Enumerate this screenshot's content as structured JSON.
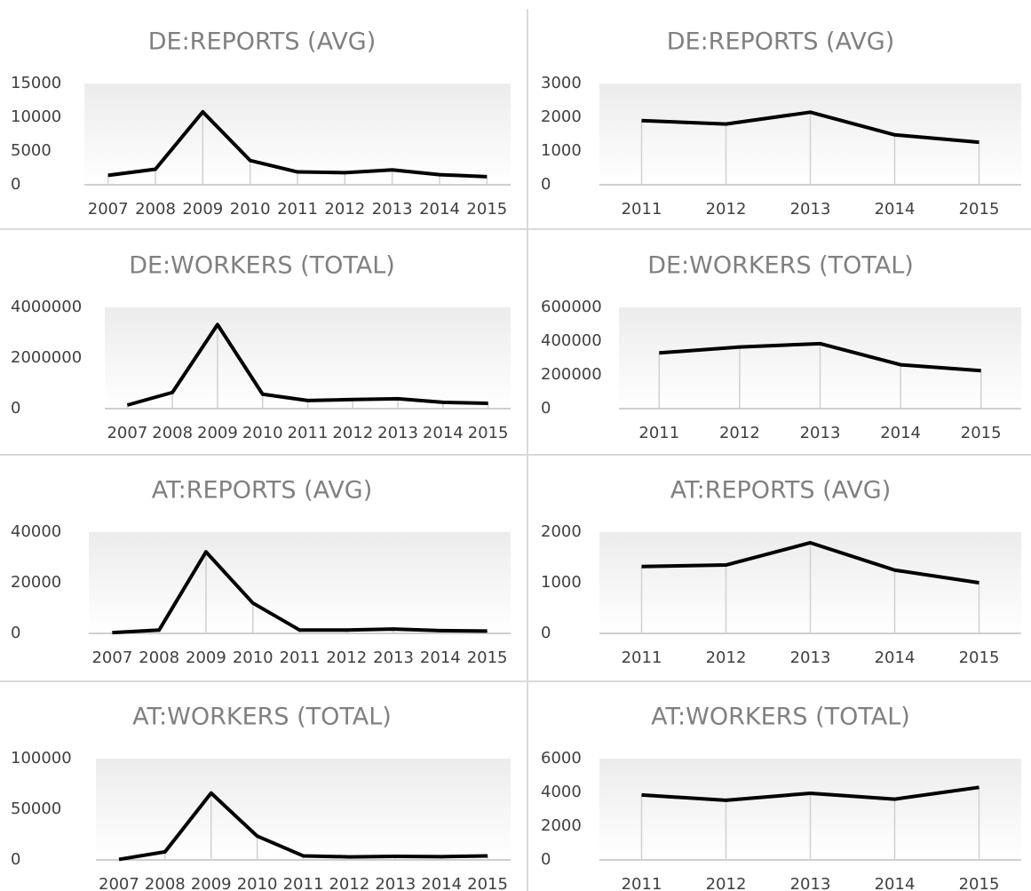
{
  "chart_data": [
    {
      "type": "line",
      "title": "DE:REPORTS (AVG)",
      "categories": [
        "2007",
        "2008",
        "2009",
        "2010",
        "2011",
        "2012",
        "2013",
        "2014",
        "2015"
      ],
      "values": [
        1400,
        2300,
        10800,
        3600,
        1900,
        1800,
        2200,
        1500,
        1200
      ],
      "color": "#000000",
      "ylim": [
        0,
        15000
      ],
      "yticks": [
        0,
        5000,
        10000,
        15000
      ],
      "grid": false
    },
    {
      "type": "line",
      "title": "DE:REPORTS (AVG)",
      "categories": [
        "2011",
        "2012",
        "2013",
        "2014",
        "2015"
      ],
      "values": [
        1900,
        1800,
        2150,
        1480,
        1260
      ],
      "color": "#000000",
      "ylim": [
        0,
        3000
      ],
      "yticks": [
        0,
        1000,
        2000,
        3000
      ],
      "grid": false
    },
    {
      "type": "line",
      "title": "DE:WORKERS (TOTAL)",
      "categories": [
        "2007",
        "2008",
        "2009",
        "2010",
        "2011",
        "2012",
        "2013",
        "2014",
        "2015"
      ],
      "values": [
        140000,
        640000,
        3320000,
        570000,
        320000,
        360000,
        390000,
        250000,
        210000
      ],
      "color": "#000000",
      "ylim": [
        0,
        4000000
      ],
      "yticks": [
        0,
        2000000,
        4000000
      ],
      "grid": false
    },
    {
      "type": "line",
      "title": "DE:WORKERS (TOTAL)",
      "categories": [
        "2011",
        "2012",
        "2013",
        "2014",
        "2015"
      ],
      "values": [
        330000,
        365000,
        385000,
        260000,
        225000
      ],
      "color": "#000000",
      "ylim": [
        0,
        600000
      ],
      "yticks": [
        0,
        200000,
        400000,
        600000
      ],
      "grid": false
    },
    {
      "type": "line",
      "title": "AT:REPORTS (AVG)",
      "categories": [
        "2007",
        "2008",
        "2009",
        "2010",
        "2011",
        "2012",
        "2013",
        "2014",
        "2015"
      ],
      "values": [
        300,
        1300,
        32200,
        12000,
        1300,
        1300,
        1700,
        1100,
        900
      ],
      "color": "#000000",
      "ylim": [
        0,
        40000
      ],
      "yticks": [
        0,
        20000,
        40000
      ],
      "grid": false
    },
    {
      "type": "line",
      "title": "AT:REPORTS (AVG)",
      "categories": [
        "2011",
        "2012",
        "2013",
        "2014",
        "2015"
      ],
      "values": [
        1320,
        1350,
        1790,
        1250,
        1000
      ],
      "color": "#000000",
      "ylim": [
        0,
        2000
      ],
      "yticks": [
        0,
        1000,
        2000
      ],
      "grid": false
    },
    {
      "type": "line",
      "title": "AT:WORKERS (TOTAL)",
      "categories": [
        "2007",
        "2008",
        "2009",
        "2010",
        "2011",
        "2012",
        "2013",
        "2014",
        "2015"
      ],
      "values": [
        500,
        8000,
        66000,
        23500,
        4000,
        3000,
        3500,
        3200,
        4000
      ],
      "color": "#000000",
      "ylim": [
        0,
        100000
      ],
      "yticks": [
        0,
        50000,
        100000
      ],
      "grid": false
    },
    {
      "type": "line",
      "title": "AT:WORKERS (TOTAL)",
      "categories": [
        "2011",
        "2012",
        "2013",
        "2014",
        "2015"
      ],
      "values": [
        3850,
        3530,
        3950,
        3600,
        4300
      ],
      "color": "#000000",
      "ylim": [
        0,
        6000
      ],
      "yticks": [
        0,
        2000,
        4000,
        6000
      ],
      "grid": false
    }
  ]
}
